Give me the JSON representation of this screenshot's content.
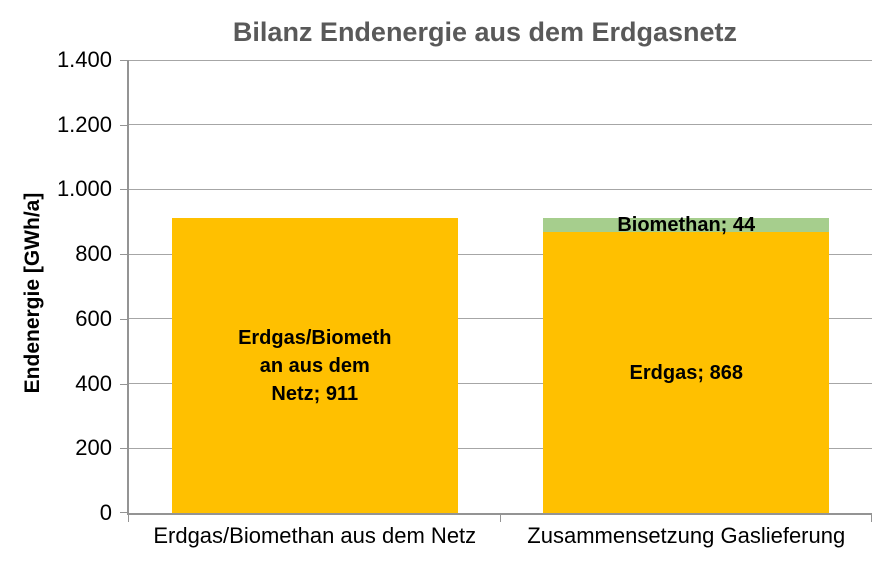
{
  "chart_data": {
    "type": "bar",
    "stacked": true,
    "title": "Bilanz Endenergie aus dem Erdgasnetz",
    "ylabel": "Endenergie [GWh/a]",
    "xlabel": "",
    "ylim": [
      0,
      1400
    ],
    "ytick_step": 200,
    "grid": true,
    "legend": false,
    "yticks": [
      {
        "value": 0,
        "label": "0"
      },
      {
        "value": 200,
        "label": "200"
      },
      {
        "value": 400,
        "label": "400"
      },
      {
        "value": 600,
        "label": "600"
      },
      {
        "value": 800,
        "label": "800"
      },
      {
        "value": 1000,
        "label": "1.000"
      },
      {
        "value": 1200,
        "label": "1.200"
      },
      {
        "value": 1400,
        "label": "1.400"
      }
    ],
    "categories": [
      "Erdgas/Biomethan aus dem Netz",
      "Zusammensetzung Gaslieferung"
    ],
    "bars": [
      {
        "category": "Erdgas/Biomethan aus dem Netz",
        "segments": [
          {
            "name": "Erdgas/Biomethan aus dem Netz",
            "value": 911,
            "color": "#FFC000",
            "label_lines": [
              "Erdgas/Biometh",
              "an aus dem",
              "Netz; 911"
            ]
          }
        ]
      },
      {
        "category": "Zusammensetzung Gaslieferung",
        "segments": [
          {
            "name": "Erdgas",
            "value": 868,
            "color": "#FFC000",
            "label_lines": [
              "Erdgas; 868"
            ]
          },
          {
            "name": "Biomethan",
            "value": 44,
            "color": "#A6CE8D",
            "label_lines": [
              "Biomethan; 44"
            ]
          }
        ]
      }
    ],
    "colors": {
      "erdgas": "#FFC000",
      "biomethan": "#A6CE8D",
      "title_text": "#595959",
      "axis_line": "#949494",
      "gridline": "#A6A6A6",
      "label_text": "#000000"
    }
  }
}
